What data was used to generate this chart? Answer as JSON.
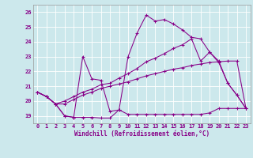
{
  "xlabel": "Windchill (Refroidissement éolien,°C)",
  "xlim": [
    -0.5,
    23.5
  ],
  "ylim": [
    18.5,
    26.5
  ],
  "yticks": [
    19,
    20,
    21,
    22,
    23,
    24,
    25,
    26
  ],
  "xticks": [
    0,
    1,
    2,
    3,
    4,
    5,
    6,
    7,
    8,
    9,
    10,
    11,
    12,
    13,
    14,
    15,
    16,
    17,
    18,
    19,
    20,
    21,
    22,
    23
  ],
  "bg_color": "#cce8ec",
  "line_color": "#880088",
  "grid_color": "#ffffff",
  "series": [
    [
      20.6,
      20.3,
      19.8,
      19.0,
      18.9,
      18.9,
      18.9,
      18.85,
      18.85,
      19.4,
      19.1,
      19.1,
      19.1,
      19.1,
      19.1,
      19.1,
      19.1,
      19.1,
      19.1,
      19.2,
      19.5,
      19.5,
      19.5,
      19.5
    ],
    [
      20.6,
      20.3,
      19.8,
      19.8,
      20.1,
      20.4,
      20.6,
      20.85,
      21.0,
      21.15,
      21.3,
      21.5,
      21.7,
      21.85,
      22.0,
      22.15,
      22.25,
      22.4,
      22.5,
      22.6,
      22.65,
      22.7,
      22.7,
      19.5
    ],
    [
      20.6,
      20.3,
      19.8,
      20.0,
      20.3,
      20.6,
      20.8,
      21.1,
      21.2,
      21.55,
      21.85,
      22.2,
      22.65,
      22.9,
      23.2,
      23.55,
      23.8,
      24.2,
      22.7,
      23.3,
      22.6,
      21.2,
      20.4,
      19.5
    ],
    [
      20.6,
      20.3,
      19.8,
      19.0,
      18.9,
      23.0,
      21.5,
      21.4,
      19.3,
      19.4,
      23.0,
      24.6,
      25.8,
      25.4,
      25.5,
      25.2,
      24.8,
      24.3,
      24.2,
      23.3,
      22.7,
      21.2,
      20.4,
      19.5
    ]
  ]
}
